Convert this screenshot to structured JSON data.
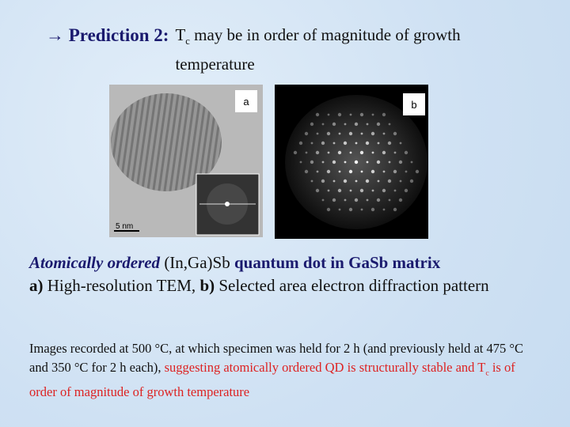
{
  "title": {
    "prefix": "→ Prediction 2:",
    "symbol": "T",
    "subscript": "c",
    "rest": "may be in order of magnitude of growth temperature"
  },
  "figures": [
    {
      "label": "a",
      "scale_bar": "5 nm"
    },
    {
      "label": "b"
    }
  ],
  "caption": {
    "emphasis": "Atomically ordered",
    "material": "(In,Ga)Sb",
    "rest": "quantum dot in GaSb matrix",
    "a_label": "a)",
    "a_text": "High-resolution TEM,",
    "b_label": "b)",
    "b_text": "Selected area electron diffraction pattern"
  },
  "note": {
    "plain": "Images recorded at 500 °C, at which specimen was held for 2 h (and previously held at 475 °C and 350 °C for 2 h each),",
    "highlight_before": "suggesting atomically ordered QD is structurally stable and T",
    "subscript": "c",
    "highlight_after": "is of order of magnitude of growth temperature"
  }
}
